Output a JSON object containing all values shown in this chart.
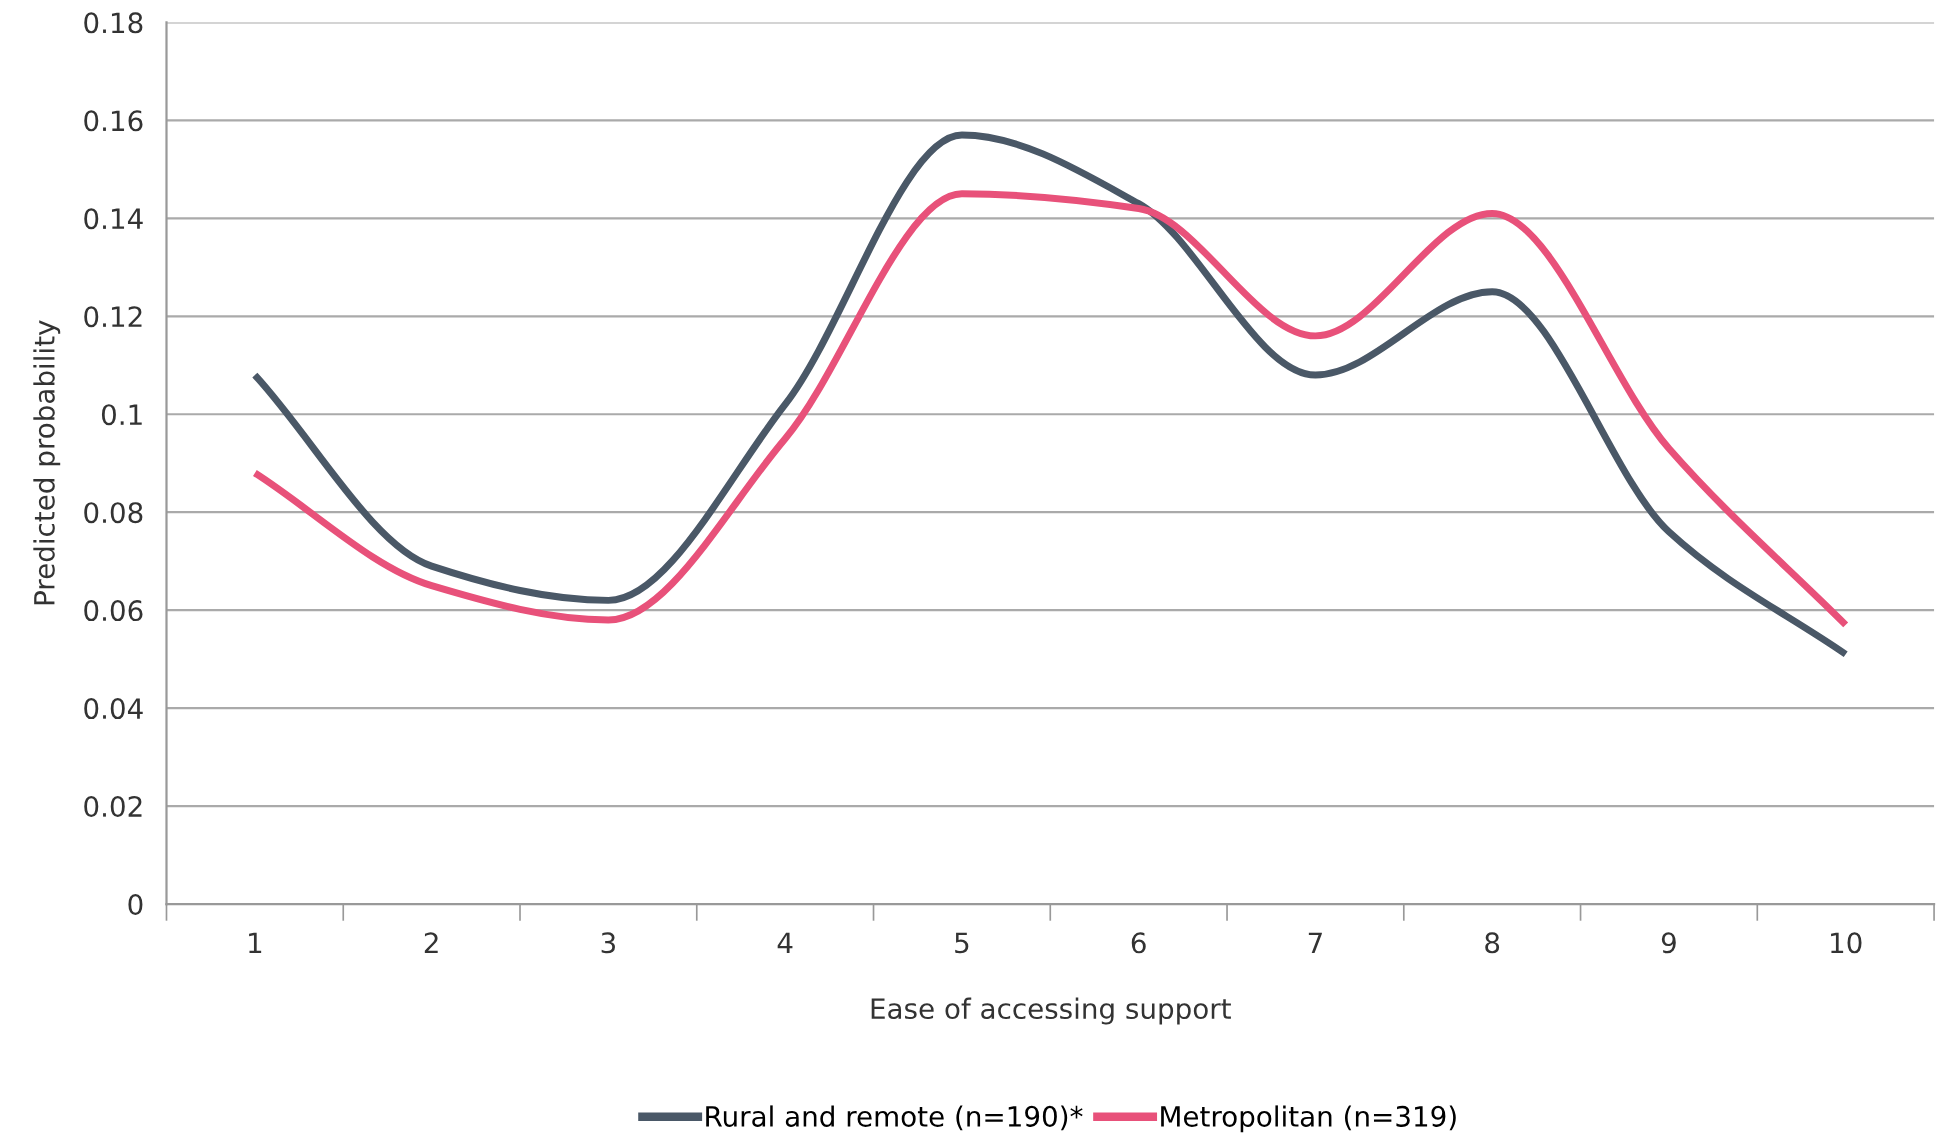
{
  "chart_data": {
    "type": "line",
    "xlabel": "Ease of accessing support",
    "ylabel": "Predicted probability",
    "categories": [
      "1",
      "2",
      "3",
      "4",
      "5",
      "6",
      "7",
      "8",
      "9",
      "10"
    ],
    "series": [
      {
        "name": "Rural and remote (n=190)*",
        "color": "#4a5867",
        "values": [
          0.108,
          0.069,
          0.062,
          0.102,
          0.157,
          0.143,
          0.108,
          0.125,
          0.076,
          0.051
        ]
      },
      {
        "name": "Metropolitan (n=319)",
        "color": "#e8517a",
        "values": [
          0.088,
          0.065,
          0.058,
          0.095,
          0.145,
          0.142,
          0.116,
          0.141,
          0.093,
          0.057
        ]
      }
    ],
    "ylim": [
      0,
      0.18
    ],
    "yticks": [
      {
        "value": 0,
        "label": "0"
      },
      0.02,
      0.04,
      0.06,
      0.08,
      {
        "value": 0.1,
        "label": "0.1"
      },
      0.12,
      0.14,
      0.16,
      0.18
    ],
    "grid": "y",
    "legend": "bottom",
    "marker": "none",
    "line_style": "solid"
  }
}
